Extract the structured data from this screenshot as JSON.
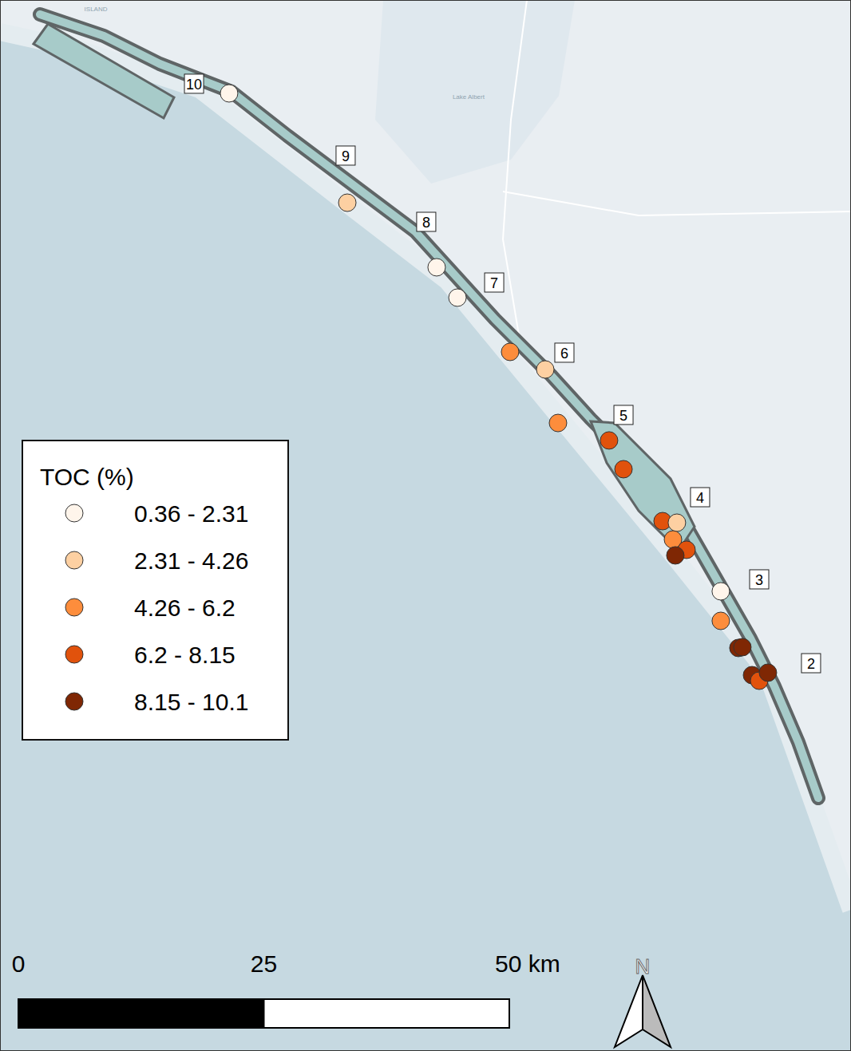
{
  "chart_data": {
    "type": "scatter",
    "xlim": [
      0,
      86.67
    ],
    "ylim": [
      0,
      107.07
    ],
    "tick_labels": false,
    "grid": false,
    "legend": {
      "title": "TOC (%)",
      "classes": [
        {
          "min": 0.36,
          "max": 2.31,
          "label": "0.36 - 2.31",
          "color": "#fff5eb"
        },
        {
          "min": 2.31,
          "max": 4.26,
          "label": "2.31 - 4.26",
          "color": "#fdd0a2"
        },
        {
          "min": 4.26,
          "max": 6.2,
          "label": "4.26 - 6.2",
          "color": "#fd8d3c"
        },
        {
          "min": 6.2,
          "max": 8.15,
          "label": "6.2 - 8.15",
          "color": "#e1520c"
        },
        {
          "min": 8.15,
          "max": 10.1,
          "label": "8.15 - 10.1",
          "color": "#7f2704"
        }
      ]
    },
    "points": [
      {
        "x": 23.33,
        "y": 97.56,
        "toc": 1.2
      },
      {
        "x": 35.37,
        "y": 86.42,
        "toc": 3.3
      },
      {
        "x": 44.47,
        "y": 79.84,
        "toc": 1.4
      },
      {
        "x": 46.59,
        "y": 76.75,
        "toc": 1.1
      },
      {
        "x": 51.95,
        "y": 71.22,
        "toc": 5.2
      },
      {
        "x": 55.53,
        "y": 69.43,
        "toc": 3.4
      },
      {
        "x": 56.83,
        "y": 63.98,
        "toc": 5.0
      },
      {
        "x": 62.03,
        "y": 62.2,
        "toc": 7.3
      },
      {
        "x": 63.5,
        "y": 59.27,
        "toc": 7.1
      },
      {
        "x": 67.48,
        "y": 53.98,
        "toc": 7.2
      },
      {
        "x": 68.94,
        "y": 53.82,
        "toc": 3.2
      },
      {
        "x": 68.54,
        "y": 52.11,
        "toc": 5.3
      },
      {
        "x": 69.92,
        "y": 51.06,
        "toc": 7.0
      },
      {
        "x": 68.78,
        "y": 50.49,
        "toc": 9.0
      },
      {
        "x": 73.41,
        "y": 46.83,
        "toc": 1.5
      },
      {
        "x": 73.41,
        "y": 43.82,
        "toc": 5.1
      },
      {
        "x": 75.2,
        "y": 41.06,
        "toc": 9.2
      },
      {
        "x": 75.61,
        "y": 41.14,
        "toc": 9.1
      },
      {
        "x": 76.59,
        "y": 38.29,
        "toc": 9.4
      },
      {
        "x": 77.32,
        "y": 37.72,
        "toc": 7.4
      },
      {
        "x": 78.21,
        "y": 38.54,
        "toc": 9.3
      }
    ],
    "sites": [
      {
        "label": "10",
        "x": 19.76,
        "y": 98.54
      },
      {
        "label": "9",
        "x": 35.2,
        "y": 91.22
      },
      {
        "label": "8",
        "x": 43.41,
        "y": 84.47
      },
      {
        "label": "7",
        "x": 50.33,
        "y": 78.29
      },
      {
        "label": "6",
        "x": 57.48,
        "y": 71.14
      },
      {
        "label": "5",
        "x": 63.5,
        "y": 64.8
      },
      {
        "label": "4",
        "x": 71.3,
        "y": 56.42
      },
      {
        "label": "3",
        "x": 77.32,
        "y": 48.05
      },
      {
        "label": "2",
        "x": 82.6,
        "y": 39.51
      }
    ],
    "map_labels": [
      {
        "text": "Lake Albert",
        "x": 47.72,
        "y": 97.0
      },
      {
        "text": "ISLAND",
        "x": 9.76,
        "y": 105.9
      }
    ],
    "scale_bar": {
      "ticks": [
        {
          "value": 0,
          "label": "0"
        },
        {
          "value": 25,
          "label": "25"
        },
        {
          "value": 50,
          "label": "50 km"
        }
      ]
    },
    "north_label": "N"
  }
}
